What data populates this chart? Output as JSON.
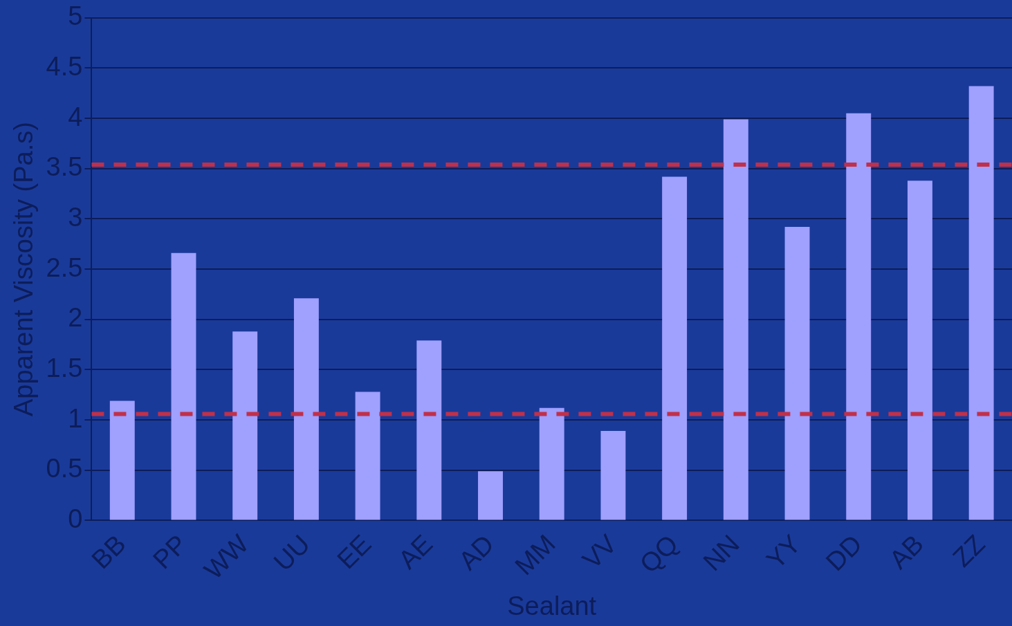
{
  "chart_data": {
    "type": "bar",
    "xlabel": "Sealant",
    "ylabel": "Apparent Viscosity (Pa.s)",
    "categories": [
      "BB",
      "PP",
      "WW",
      "UU",
      "EE",
      "AE",
      "AD",
      "MM",
      "VV",
      "QQ",
      "NN",
      "YY",
      "DD",
      "AB",
      "ZZ"
    ],
    "values": [
      1.19,
      2.66,
      1.88,
      2.21,
      1.28,
      1.79,
      0.49,
      1.12,
      0.89,
      3.42,
      3.99,
      2.92,
      4.05,
      3.38,
      4.32
    ],
    "color": "#a0a0ff",
    "ylim": [
      0,
      5
    ],
    "yticks": [
      0,
      0.5,
      1,
      1.5,
      2,
      2.5,
      3,
      3.5,
      4,
      4.5,
      5
    ],
    "grid": "y",
    "legend": false,
    "ref_lines": [
      {
        "axis": "y",
        "value": 3.54,
        "color": "#c0304a",
        "line_style": "dashed"
      },
      {
        "axis": "y",
        "value": 1.06,
        "color": "#c0304a",
        "line_style": "dashed"
      }
    ]
  }
}
